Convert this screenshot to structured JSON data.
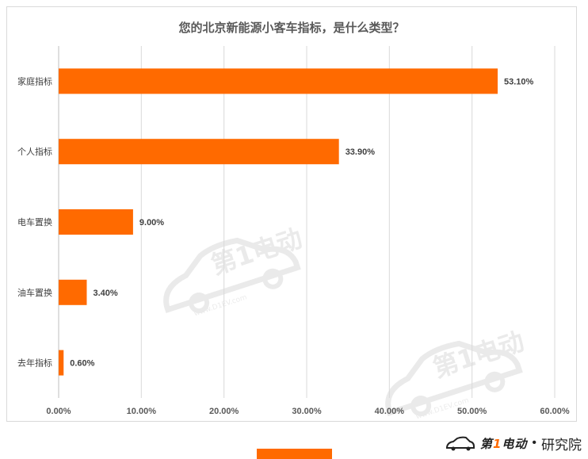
{
  "chart_data": {
    "type": "bar",
    "orientation": "horizontal",
    "title": "您的北京新能源小客车指标，是什么类型？",
    "categories": [
      "家庭指标",
      "个人指标",
      "电车置换",
      "油车置换",
      "去年指标"
    ],
    "values": [
      53.1,
      33.9,
      9.0,
      3.4,
      0.6
    ],
    "value_labels": [
      "53.10%",
      "33.90%",
      "9.00%",
      "3.40%",
      "0.60%"
    ],
    "x_ticks": [
      "0.00%",
      "10.00%",
      "20.00%",
      "30.00%",
      "40.00%",
      "50.00%",
      "60.00%"
    ],
    "xlim": [
      0,
      60
    ],
    "grid": true,
    "bar_color": "#ff6a00"
  },
  "watermark": {
    "brand": "第1电动",
    "url": "www.D1EV.com"
  },
  "footer": {
    "brand_prefix": "第",
    "brand_one": "1",
    "brand_suffix": "电动",
    "separator": "•",
    "subtitle": "研究院"
  }
}
